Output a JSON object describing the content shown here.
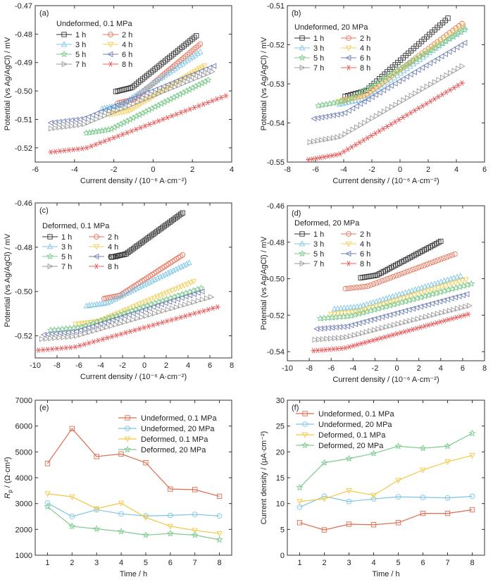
{
  "chart_data": [
    {
      "type": "scatter",
      "panel": "(a)",
      "legend_title": "Undeformed, 0.1 MPa",
      "xlabel": "Current density / (10⁻⁶ A·cm⁻²)",
      "ylabel": "Potential (vs Ag/AgCl) / mV",
      "xlim": [
        -6,
        4
      ],
      "ylim": [
        -0.525,
        -0.47
      ],
      "xticks": [
        -6,
        -4,
        -2,
        0,
        2,
        4
      ],
      "yticks": [
        -0.52,
        -0.51,
        -0.5,
        -0.49,
        -0.48,
        -0.47
      ],
      "xtick_labels": [
        "-6",
        "-4",
        "-2",
        "0",
        "2",
        "4"
      ],
      "ytick_labels": [
        "-0.52",
        "-0.51",
        "-0.50",
        "-0.49",
        "-0.48",
        "-0.47"
      ],
      "legend_position": "top-left",
      "series": [
        {
          "name": "1 h",
          "x_range": [
            -1.9,
            2.2
          ],
          "y_range": [
            -0.5002,
            -0.4806
          ]
        },
        {
          "name": "2 h",
          "x_range": [
            -1.8,
            2.4
          ],
          "y_range": [
            -0.5043,
            -0.4835
          ]
        },
        {
          "name": "3 h",
          "x_range": [
            -2.6,
            2.4
          ],
          "y_range": [
            -0.5062,
            -0.4862
          ]
        },
        {
          "name": "4 h",
          "x_range": [
            -2.2,
            2.6
          ],
          "y_range": [
            -0.5082,
            -0.4912
          ]
        },
        {
          "name": "5 h",
          "x_range": [
            -3.4,
            2.8
          ],
          "y_range": [
            -0.5148,
            -0.4962
          ]
        },
        {
          "name": "6 h",
          "x_range": [
            -5.2,
            3.1
          ],
          "y_range": [
            -0.5112,
            -0.4912
          ]
        },
        {
          "name": "7 h",
          "x_range": [
            -5.2,
            3.0
          ],
          "y_range": [
            -0.5132,
            -0.4932
          ]
        },
        {
          "name": "8 h",
          "x_range": [
            -5.2,
            3.7
          ],
          "y_range": [
            -0.5215,
            -0.5017
          ]
        }
      ]
    },
    {
      "type": "scatter",
      "panel": "(b)",
      "legend_title": "Undeformed, 20 MPa",
      "xlabel": "Current density / (10⁻⁶ A·cm⁻²)",
      "ylabel": "Potential (vs Ag/AgCl) / mV",
      "xlim": [
        -8,
        6
      ],
      "ylim": [
        -0.55,
        -0.51
      ],
      "xticks": [
        -8,
        -6,
        -4,
        -2,
        0,
        2,
        4,
        6
      ],
      "yticks": [
        -0.55,
        -0.54,
        -0.53,
        -0.52,
        -0.51
      ],
      "xtick_labels": [
        "-8",
        "-6",
        "-4",
        "-2",
        "0",
        "2",
        "4",
        "6"
      ],
      "ytick_labels": [
        "-0.55",
        "-0.54",
        "-0.53",
        "-0.52",
        "-0.51"
      ],
      "legend_position": "top-left",
      "series": [
        {
          "name": "1 h",
          "x_range": [
            -3.9,
            3.4
          ],
          "y_range": [
            -0.5332,
            -0.5132
          ]
        },
        {
          "name": "2 h",
          "x_range": [
            -4.1,
            4.4
          ],
          "y_range": [
            -0.5342,
            -0.5146
          ]
        },
        {
          "name": "3 h",
          "x_range": [
            -4.3,
            4.6
          ],
          "y_range": [
            -0.5352,
            -0.5156
          ]
        },
        {
          "name": "4 h",
          "x_range": [
            -4.4,
            4.5
          ],
          "y_range": [
            -0.5346,
            -0.5152
          ]
        },
        {
          "name": "5 h",
          "x_range": [
            -5.8,
            4.6
          ],
          "y_range": [
            -0.5356,
            -0.5162
          ]
        },
        {
          "name": "6 h",
          "x_range": [
            -6.1,
            4.6
          ],
          "y_range": [
            -0.5389,
            -0.5195
          ]
        },
        {
          "name": "7 h",
          "x_range": [
            -6.4,
            4.4
          ],
          "y_range": [
            -0.5449,
            -0.5255
          ]
        },
        {
          "name": "8 h",
          "x_range": [
            -6.5,
            4.4
          ],
          "y_range": [
            -0.5494,
            -0.5298
          ]
        }
      ]
    },
    {
      "type": "scatter",
      "panel": "(c)",
      "legend_title": "Deformed, 0.1 MPa",
      "xlabel": "Current density / (10⁻⁶ A·cm⁻²)",
      "ylabel": "Potential (vs Ag/AgCl) / mV",
      "xlim": [
        -10,
        8
      ],
      "ylim": [
        -0.53,
        -0.46
      ],
      "xticks": [
        -10,
        -8,
        -6,
        -4,
        -2,
        0,
        2,
        4,
        6,
        8
      ],
      "yticks": [
        -0.52,
        -0.5,
        -0.48,
        -0.46
      ],
      "xtick_labels": [
        "-10",
        "-8",
        "-6",
        "-4",
        "-2",
        "0",
        "2",
        "4",
        "6",
        "8"
      ],
      "ytick_labels": [
        "-0.52",
        "-0.50",
        "-0.48",
        "-0.46"
      ],
      "legend_position": "top-left",
      "series": [
        {
          "name": "1 h",
          "x_range": [
            -3.0,
            3.5
          ],
          "y_range": [
            -0.4845,
            -0.4645
          ]
        },
        {
          "name": "2 h",
          "x_range": [
            -3.7,
            3.5
          ],
          "y_range": [
            -0.5032,
            -0.4835
          ]
        },
        {
          "name": "3 h",
          "x_range": [
            -5.3,
            4.1
          ],
          "y_range": [
            -0.5065,
            -0.487
          ]
        },
        {
          "name": "4 h",
          "x_range": [
            -6.3,
            4.5
          ],
          "y_range": [
            -0.5148,
            -0.4955
          ]
        },
        {
          "name": "5 h",
          "x_range": [
            -8.6,
            5.2
          ],
          "y_range": [
            -0.5175,
            -0.4985
          ]
        },
        {
          "name": "6 h",
          "x_range": [
            -9.2,
            5.3
          ],
          "y_range": [
            -0.5195,
            -0.5
          ]
        },
        {
          "name": "7 h",
          "x_range": [
            -9.4,
            6.1
          ],
          "y_range": [
            -0.5215,
            -0.5025
          ]
        },
        {
          "name": "8 h",
          "x_range": [
            -9.7,
            6.7
          ],
          "y_range": [
            -0.5265,
            -0.507
          ]
        }
      ]
    },
    {
      "type": "scatter",
      "panel": "(d)",
      "legend_title": "Deformed, 20 MPa",
      "xlabel": "Current density / (10⁻⁶ A·cm⁻²)",
      "ylabel": "Potential (vs Ag/AgCl) / mV",
      "xlim": [
        -10,
        8
      ],
      "ylim": [
        -0.545,
        -0.46
      ],
      "xticks": [
        -10,
        -8,
        -6,
        -4,
        -2,
        0,
        2,
        4,
        6,
        8
      ],
      "yticks": [
        -0.54,
        -0.52,
        -0.5,
        -0.48,
        -0.46
      ],
      "xtick_labels": [
        "-10",
        "-8",
        "-6",
        "-4",
        "-2",
        "0",
        "2",
        "4",
        "6",
        "8"
      ],
      "ytick_labels": [
        "-0.54",
        "-0.52",
        "-0.50",
        "-0.48",
        "-0.46"
      ],
      "legend_position": "top-left",
      "series": [
        {
          "name": "1 h",
          "x_range": [
            -3.3,
            4.0
          ],
          "y_range": [
            -0.4995,
            -0.4795
          ]
        },
        {
          "name": "2 h",
          "x_range": [
            -4.7,
            5.3
          ],
          "y_range": [
            -0.5055,
            -0.4865
          ]
        },
        {
          "name": "3 h",
          "x_range": [
            -5.7,
            5.8
          ],
          "y_range": [
            -0.5165,
            -0.4985
          ]
        },
        {
          "name": "4 h",
          "x_range": [
            -6.0,
            6.3
          ],
          "y_range": [
            -0.5195,
            -0.5005
          ]
        },
        {
          "name": "5 h",
          "x_range": [
            -7.0,
            6.8
          ],
          "y_range": [
            -0.5218,
            -0.5028
          ]
        },
        {
          "name": "6 h",
          "x_range": [
            -7.3,
            6.4
          ],
          "y_range": [
            -0.5275,
            -0.5085
          ]
        },
        {
          "name": "7 h",
          "x_range": [
            -7.5,
            6.6
          ],
          "y_range": [
            -0.5335,
            -0.5148
          ]
        },
        {
          "name": "8 h",
          "x_range": [
            -7.6,
            6.5
          ],
          "y_range": [
            -0.5395,
            -0.5195
          ]
        }
      ]
    },
    {
      "type": "line",
      "panel": "(e)",
      "xlabel": "Time / h",
      "ylabel_main": "R",
      "ylabel_sub": "p",
      "ylabel_rest": " / (Ω·cm²)",
      "xlim": [
        0.5,
        8.5
      ],
      "ylim": [
        1000,
        7000
      ],
      "xticks": [
        1,
        2,
        3,
        4,
        5,
        6,
        7,
        8
      ],
      "yticks": [
        1000,
        2000,
        3000,
        4000,
        5000,
        6000,
        7000
      ],
      "xtick_labels": [
        "1",
        "2",
        "3",
        "4",
        "5",
        "6",
        "7",
        "8"
      ],
      "ytick_labels": [
        "1000",
        "2000",
        "3000",
        "4000",
        "5000",
        "6000",
        "7000"
      ],
      "legend_position": "top-right",
      "x": [
        1,
        2,
        3,
        4,
        5,
        6,
        7,
        8
      ],
      "series": [
        {
          "name": "Undeformed, 0.1 MPa",
          "values": [
            4550,
            5900,
            4820,
            4920,
            4580,
            3560,
            3540,
            3280
          ]
        },
        {
          "name": "Undeformed, 20 MPa",
          "values": [
            3020,
            2500,
            2760,
            2600,
            2520,
            2540,
            2580,
            2520
          ]
        },
        {
          "name": "Deformed, 0.1 MPa",
          "values": [
            3380,
            3260,
            2800,
            3020,
            2460,
            2120,
            1960,
            1840
          ]
        },
        {
          "name": "Deformed, 20 MPa",
          "values": [
            2880,
            2120,
            2020,
            1920,
            1780,
            1840,
            1780,
            1600
          ]
        }
      ]
    },
    {
      "type": "line",
      "panel": "(f)",
      "xlabel": "Time / h",
      "ylabel": "Current density / (μA·cm⁻²)",
      "xlim": [
        0.5,
        8.5
      ],
      "ylim": [
        0,
        30
      ],
      "xticks": [
        1,
        2,
        3,
        4,
        5,
        6,
        7,
        8
      ],
      "yticks": [
        0,
        5,
        10,
        15,
        20,
        25,
        30
      ],
      "xtick_labels": [
        "1",
        "2",
        "3",
        "4",
        "5",
        "6",
        "7",
        "8"
      ],
      "ytick_labels": [
        "0",
        "5",
        "10",
        "15",
        "20",
        "25",
        "30"
      ],
      "legend_position": "top-left",
      "x": [
        1,
        2,
        3,
        4,
        5,
        6,
        7,
        8
      ],
      "series": [
        {
          "name": "Undeformed, 0.1 MPa",
          "values": [
            6.3,
            4.9,
            6.0,
            5.9,
            6.3,
            8.1,
            8.1,
            8.8
          ]
        },
        {
          "name": "Undeformed, 20 MPa",
          "values": [
            9.3,
            11.4,
            10.4,
            10.9,
            11.3,
            11.2,
            11.1,
            11.4
          ]
        },
        {
          "name": "Deformed, 0.1 MPa",
          "values": [
            10.4,
            10.9,
            12.5,
            11.6,
            14.5,
            16.5,
            18.1,
            19.3
          ]
        },
        {
          "name": "Deformed, 20 MPa",
          "values": [
            13.1,
            17.9,
            18.7,
            19.7,
            21.1,
            20.7,
            21.1,
            23.6
          ]
        }
      ]
    }
  ],
  "colors": {
    "series_1": "#333333",
    "series_2": "#e8735a",
    "series_3": "#7cc6e6",
    "series_4": "#f3cd57",
    "series_5": "#7dcb8e",
    "series_6": "#6f7fb4",
    "series_7": "#9a9a9a",
    "series_8": "#e85d5d",
    "line_undeformed_01": "#e06a4e",
    "line_undeformed_20": "#7cc6e6",
    "line_deformed_01": "#f3c742",
    "line_deformed_20": "#7dcb8e"
  },
  "marker_symbols": [
    "square",
    "circle",
    "triangle-up",
    "triangle-down",
    "star",
    "triangle-left",
    "triangle-right",
    "asterisk"
  ]
}
